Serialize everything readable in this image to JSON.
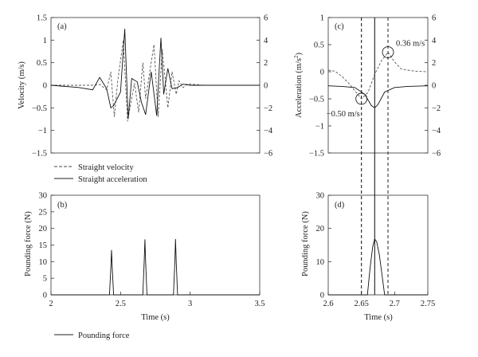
{
  "chart_data": [
    {
      "panel": "(a)",
      "type": "line",
      "ylabel": "Velocity (m/s)",
      "ylabel_right": "",
      "xlim": [
        2,
        3.5
      ],
      "ylim": [
        -1.5,
        1.5
      ],
      "ylim_right": [
        -6,
        6
      ],
      "yticks": [
        "1.5",
        "1",
        "0.5",
        "0",
        "−0.5",
        "−1",
        "−1.5"
      ],
      "yticks_right": [
        "6",
        "4",
        "2",
        "0",
        "−2",
        "−4",
        "−6"
      ],
      "legend": [
        "Straight velocity",
        "Straight acceleration"
      ],
      "legend_placement": "below plot",
      "series": [
        {
          "name": "Straight velocity",
          "axis": "left",
          "style": "dashed",
          "x": [
            2.0,
            2.3,
            2.35,
            2.4,
            2.43,
            2.455,
            2.48,
            2.52,
            2.55,
            2.6,
            2.63,
            2.66,
            2.68,
            2.71,
            2.74,
            2.77,
            2.8,
            2.84,
            2.87,
            2.9,
            2.92,
            2.95,
            2.98,
            3.1,
            3.5
          ],
          "y": [
            0,
            0,
            0.02,
            -0.1,
            0.3,
            -0.7,
            0.1,
            1.0,
            -0.8,
            0.05,
            -0.6,
            0.5,
            -0.3,
            0.3,
            0.9,
            -0.7,
            0.8,
            -0.5,
            0.3,
            -0.2,
            0.1,
            -0.05,
            0.03,
            0,
            0
          ]
        },
        {
          "name": "Straight acceleration",
          "axis": "right",
          "style": "solid",
          "x": [
            2.0,
            2.2,
            2.3,
            2.35,
            2.4,
            2.43,
            2.45,
            2.5,
            2.53,
            2.555,
            2.58,
            2.62,
            2.65,
            2.68,
            2.72,
            2.76,
            2.79,
            2.81,
            2.84,
            2.87,
            2.91,
            2.95,
            3.0,
            3.5
          ],
          "y": [
            0,
            -0.2,
            -0.4,
            0.7,
            -0.3,
            -2.0,
            -1.8,
            -0.6,
            5.0,
            -3.0,
            0.6,
            0.3,
            -1.5,
            -2.6,
            1.2,
            -2.7,
            4.2,
            -0.8,
            1.5,
            -0.3,
            -0.2,
            0.1,
            0,
            0
          ]
        }
      ]
    },
    {
      "panel": "(b)",
      "type": "line",
      "ylabel": "Pounding force (N)",
      "xlabel": "Time (s)",
      "xlim": [
        2,
        3.5
      ],
      "ylim": [
        0,
        30
      ],
      "xticks": [
        "2",
        "2.5",
        "3",
        "3.5"
      ],
      "yticks": [
        "30",
        "25",
        "20",
        "15",
        "10",
        "5",
        "0"
      ],
      "legend": [
        "Pounding force"
      ],
      "legend_placement": "below plot",
      "series": [
        {
          "name": "Pounding force",
          "style": "solid",
          "x": [
            2.0,
            2.42,
            2.43,
            2.435,
            2.44,
            2.45,
            2.66,
            2.67,
            2.675,
            2.68,
            2.69,
            2.88,
            2.89,
            2.895,
            2.9,
            2.91,
            3.5
          ],
          "y": [
            0,
            0,
            8,
            13.5,
            8,
            0,
            0,
            10,
            16.7,
            10,
            0,
            0,
            10,
            16.8,
            10,
            0,
            0
          ]
        }
      ]
    },
    {
      "panel": "(c)",
      "type": "line",
      "ylabel": "Acceleration (m/s²)",
      "xlim": [
        2.6,
        2.75
      ],
      "ylim": [
        -1.5,
        1
      ],
      "ylim_right": [
        -6,
        6
      ],
      "yticks": [
        "1",
        "0.5",
        "0",
        "−0.5",
        "−1",
        "−1.5"
      ],
      "yticks_right": [
        "6",
        "4",
        "2",
        "0",
        "−2",
        "−4",
        "−6"
      ],
      "annotations": [
        {
          "text": "0.36 m/s",
          "x": 2.69,
          "y": 0.36
        },
        {
          "text": "−0.50 m/s",
          "x": 2.65,
          "y": -0.5
        }
      ],
      "vlines": [
        2.65,
        2.67,
        2.69
      ],
      "series": [
        {
          "name": "Straight velocity",
          "axis": "left",
          "style": "dashed",
          "x": [
            2.6,
            2.61,
            2.62,
            2.63,
            2.64,
            2.65,
            2.66,
            2.67,
            2.68,
            2.69,
            2.7,
            2.71,
            2.72,
            2.73,
            2.75
          ],
          "y": [
            0.03,
            0.01,
            -0.08,
            -0.2,
            -0.35,
            -0.5,
            -0.38,
            -0.05,
            0.2,
            0.36,
            0.18,
            0.05,
            0.03,
            0.01,
            0
          ]
        },
        {
          "name": "Straight acceleration",
          "axis": "right",
          "style": "solid",
          "x": [
            2.6,
            2.62,
            2.64,
            2.655,
            2.665,
            2.67,
            2.675,
            2.685,
            2.7,
            2.72,
            2.75
          ],
          "y": [
            -0.05,
            -0.1,
            -0.2,
            -0.8,
            -1.8,
            -2.0,
            -1.7,
            -0.6,
            -0.2,
            -0.1,
            -0.05
          ]
        }
      ]
    },
    {
      "panel": "(d)",
      "type": "line",
      "ylabel": "Pounding force (N)",
      "xlabel": "Time (s)",
      "xlim": [
        2.6,
        2.75
      ],
      "ylim": [
        0,
        30
      ],
      "xticks": [
        "2.6",
        "2.65",
        "2.7",
        "2.75"
      ],
      "yticks": [
        "30",
        "20",
        "10",
        "0"
      ],
      "vlines": [
        2.65,
        2.67,
        2.69
      ],
      "series": [
        {
          "name": "Pounding force",
          "style": "solid",
          "x": [
            2.6,
            2.659,
            2.663,
            2.667,
            2.67,
            2.673,
            2.677,
            2.681,
            2.685,
            2.75
          ],
          "y": [
            0,
            0,
            8,
            14.5,
            16.8,
            16,
            12,
            6,
            0,
            0
          ]
        }
      ]
    }
  ]
}
